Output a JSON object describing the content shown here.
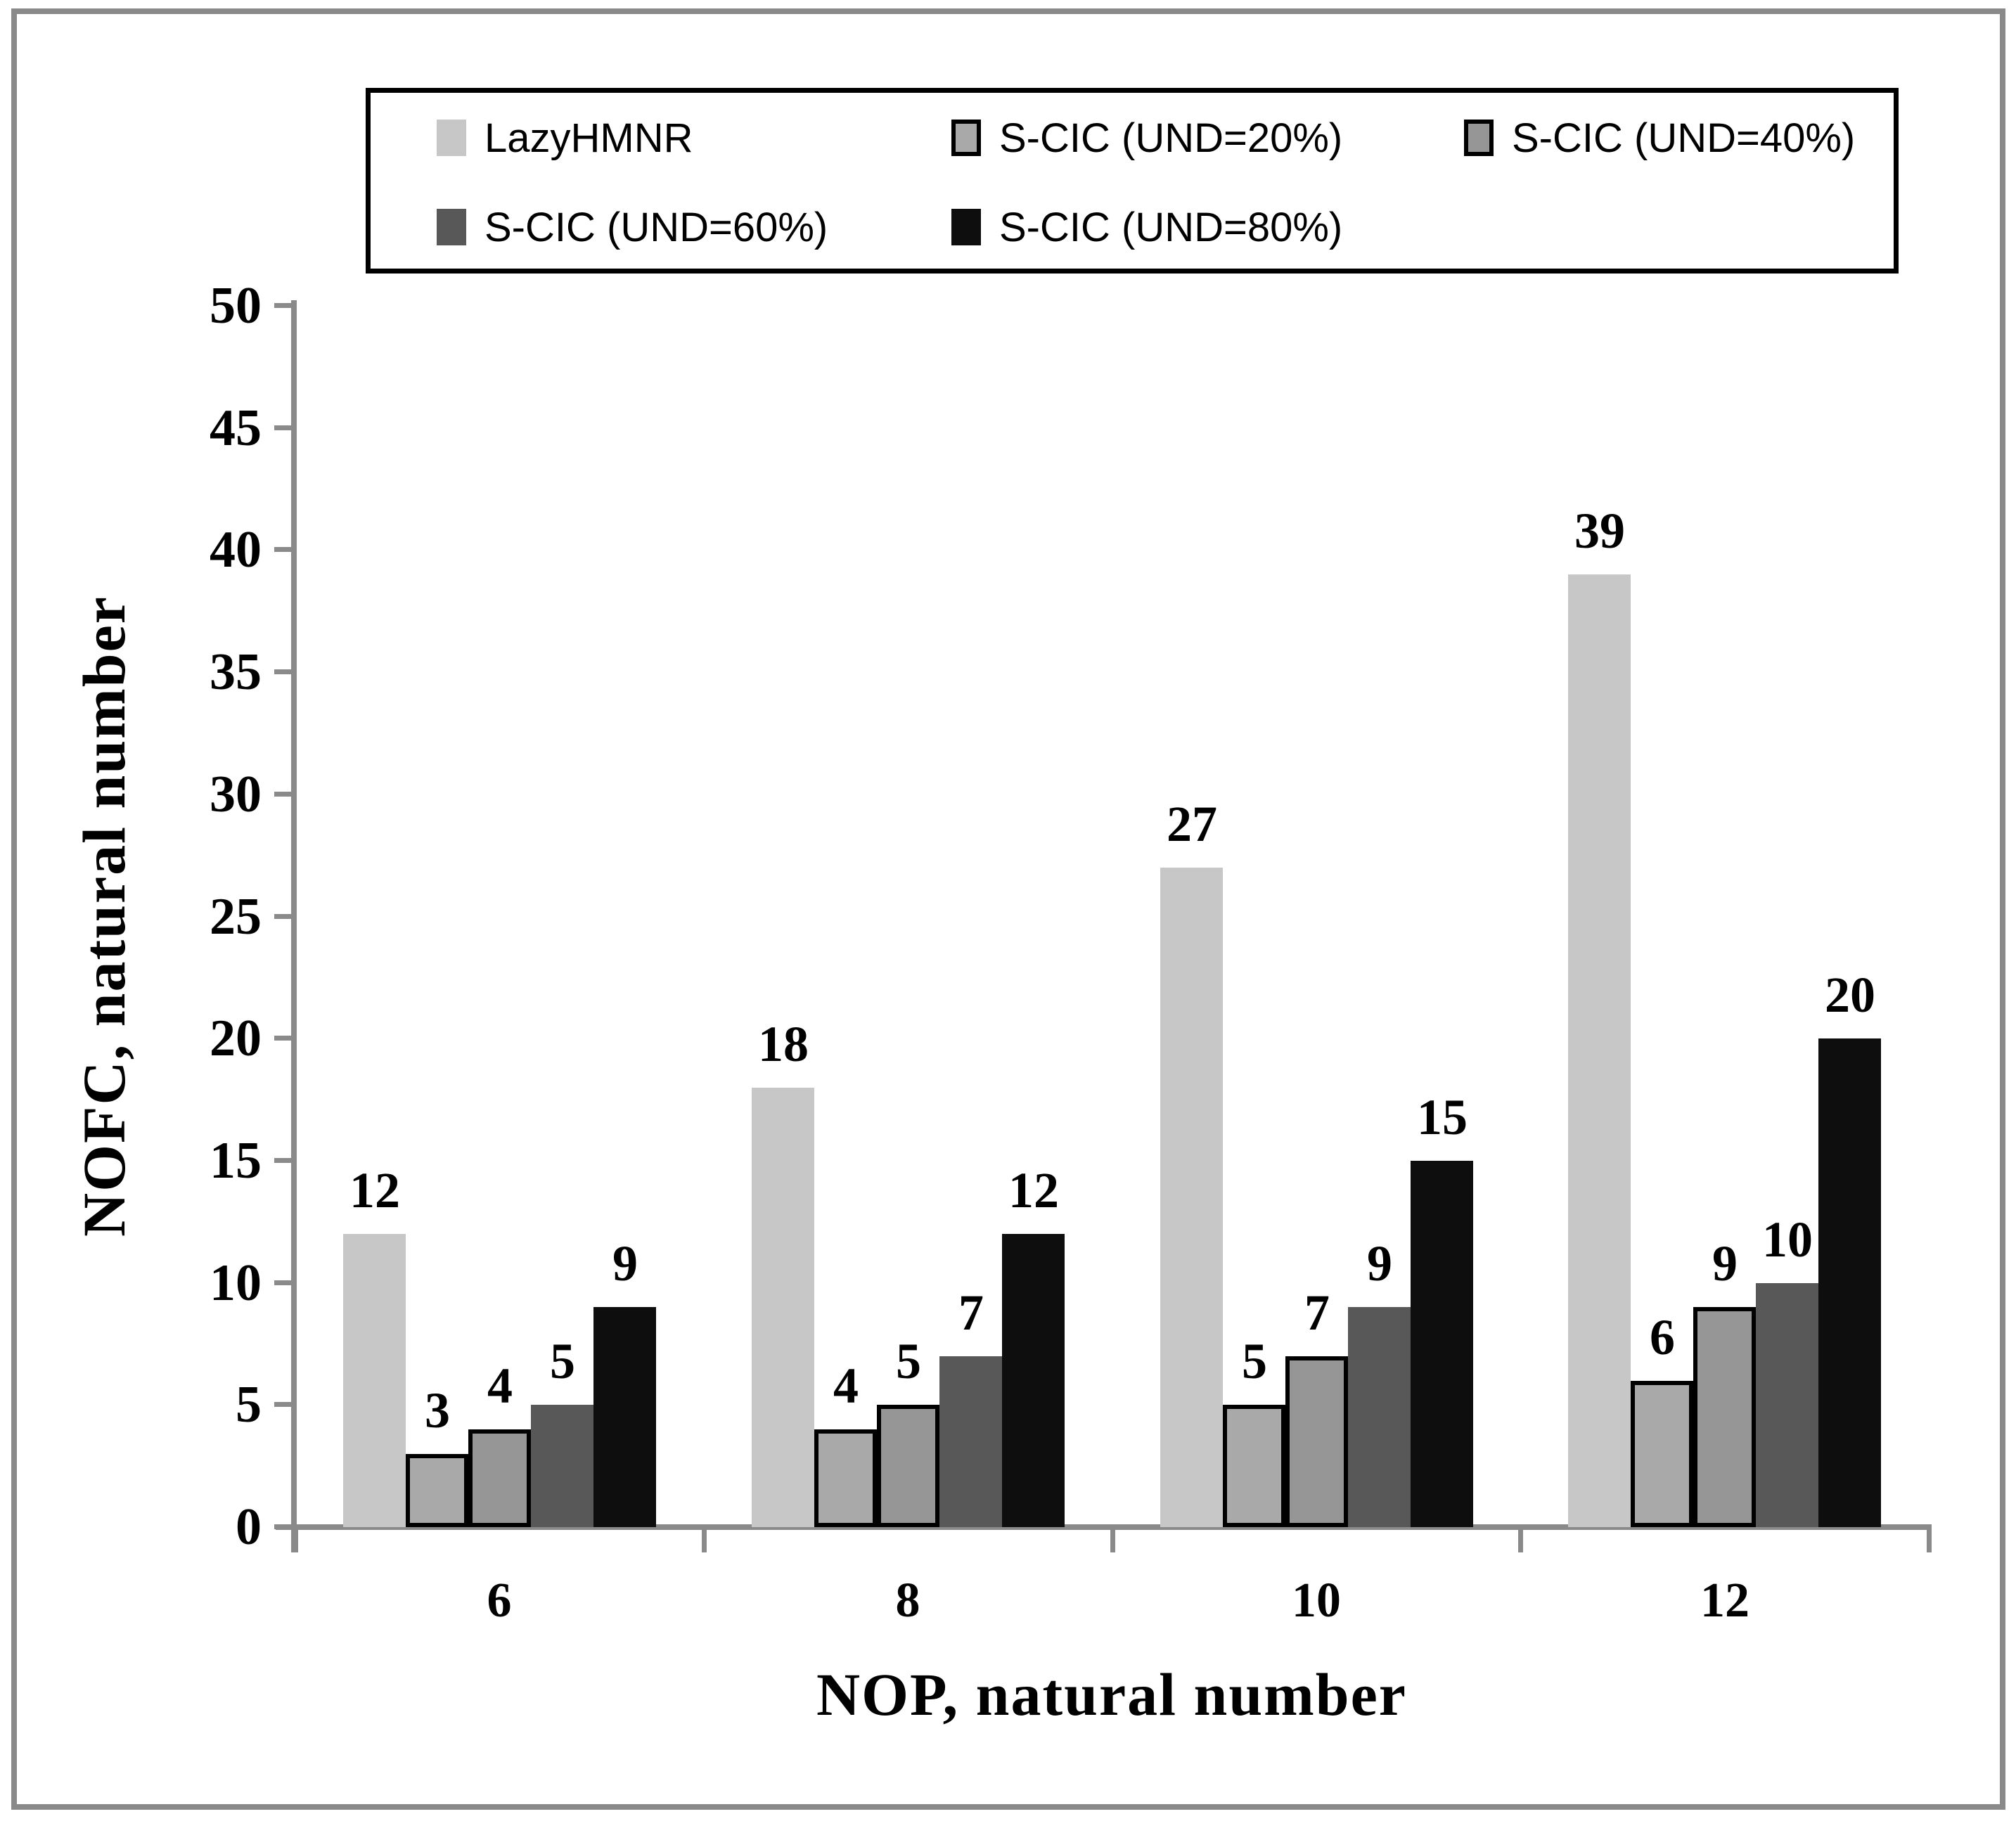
{
  "figure": {
    "frame_color": "#8a8a8a",
    "axis_color": "#8a8a8a",
    "background": "#ffffff"
  },
  "legend": {
    "items": [
      {
        "label": "LazyHMNR",
        "color": "#c7c7c7",
        "border": false
      },
      {
        "label": "S-CIC (UND=20%)",
        "color": "#a9a9a9",
        "border": true
      },
      {
        "label": "S-CIC (UND=40%)",
        "color": "#969696",
        "border": true
      },
      {
        "label": "S-CIC (UND=60%)",
        "color": "#585858",
        "border": false
      },
      {
        "label": "S-CIC (UND=80%)",
        "color": "#0e0e0e",
        "border": false
      }
    ]
  },
  "chart_data": {
    "type": "bar",
    "title": "",
    "xlabel": "NOP, natural number",
    "ylabel": "NOFC, natural number",
    "categories": [
      "6",
      "8",
      "10",
      "12"
    ],
    "series": [
      {
        "name": "LazyHMNR",
        "color": "#c7c7c7",
        "border": false,
        "values": [
          12,
          18,
          27,
          39
        ]
      },
      {
        "name": "S-CIC (UND=20%)",
        "color": "#a9a9a9",
        "border": true,
        "values": [
          3,
          4,
          5,
          6
        ]
      },
      {
        "name": "S-CIC (UND=40%)",
        "color": "#969696",
        "border": true,
        "values": [
          4,
          5,
          7,
          9
        ]
      },
      {
        "name": "S-CIC (UND=60%)",
        "color": "#585858",
        "border": false,
        "values": [
          5,
          7,
          9,
          10
        ]
      },
      {
        "name": "S-CIC (UND=80%)",
        "color": "#0e0e0e",
        "border": false,
        "values": [
          9,
          12,
          15,
          20
        ]
      }
    ],
    "ylim": [
      0,
      50
    ],
    "ytick_step": 5,
    "bar_labels": true,
    "legend_position": "top",
    "grid": false
  }
}
